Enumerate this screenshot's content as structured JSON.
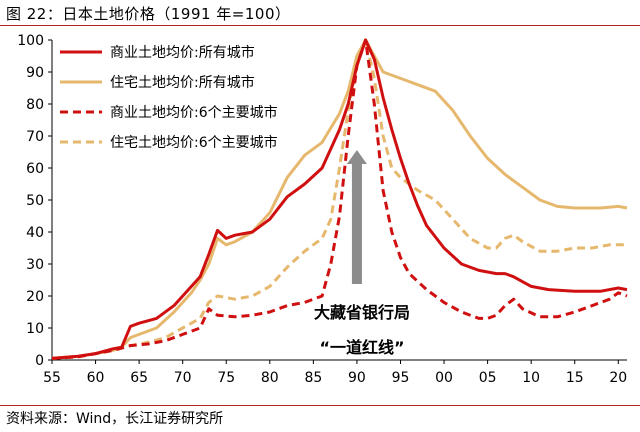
{
  "figure_title": "图 22：日本土地价格（1991 年=100）",
  "source_note": "资料来源：Wind，长江证券研究所",
  "colors": {
    "red": "#d01010",
    "gold": "#e6b86e",
    "arrow": "#8c8c8c",
    "rule": "#b22222"
  },
  "chart_data": {
    "type": "line",
    "title": "",
    "xlabel": "",
    "ylabel": "",
    "xlim": [
      1955,
      2021
    ],
    "ylim": [
      0,
      100
    ],
    "x_ticks": [
      1955,
      1960,
      1965,
      1970,
      1975,
      1980,
      1985,
      1990,
      1995,
      2000,
      2005,
      2010,
      2015,
      2020
    ],
    "x_tick_labels": [
      "55",
      "60",
      "65",
      "70",
      "75",
      "80",
      "85",
      "90",
      "95",
      "00",
      "05",
      "10",
      "15",
      "20"
    ],
    "y_ticks": [
      0,
      10,
      20,
      30,
      40,
      50,
      60,
      70,
      80,
      90,
      100
    ],
    "y_tick_labels": [
      "0",
      "10",
      "20",
      "30",
      "40",
      "50",
      "60",
      "70",
      "80",
      "90",
      "100"
    ],
    "grid": false,
    "legend_position": "top-left",
    "series": [
      {
        "name": "商业土地均价:所有城市",
        "style": "solid",
        "color": "red",
        "points": [
          [
            1955,
            0.5
          ],
          [
            1958,
            1.2
          ],
          [
            1960,
            2
          ],
          [
            1962,
            3.5
          ],
          [
            1963,
            4
          ],
          [
            1964,
            10.5
          ],
          [
            1965,
            11.5
          ],
          [
            1967,
            13
          ],
          [
            1969,
            17
          ],
          [
            1971,
            23
          ],
          [
            1972,
            26
          ],
          [
            1973,
            33
          ],
          [
            1974,
            40.5
          ],
          [
            1975,
            38
          ],
          [
            1976,
            39
          ],
          [
            1978,
            40
          ],
          [
            1980,
            44
          ],
          [
            1982,
            51
          ],
          [
            1984,
            55
          ],
          [
            1986,
            60
          ],
          [
            1988,
            72
          ],
          [
            1989,
            80
          ],
          [
            1990,
            92
          ],
          [
            1991,
            100
          ],
          [
            1992,
            94
          ],
          [
            1993,
            82
          ],
          [
            1994,
            72
          ],
          [
            1995,
            63
          ],
          [
            1996,
            55
          ],
          [
            1997,
            48
          ],
          [
            1998,
            42
          ],
          [
            2000,
            35
          ],
          [
            2002,
            30
          ],
          [
            2004,
            28
          ],
          [
            2006,
            27
          ],
          [
            2007,
            27
          ],
          [
            2008,
            26
          ],
          [
            2010,
            23
          ],
          [
            2012,
            22
          ],
          [
            2015,
            21.5
          ],
          [
            2018,
            21.5
          ],
          [
            2020,
            22.5
          ],
          [
            2021,
            22
          ]
        ]
      },
      {
        "name": "住宅土地均价:所有城市",
        "style": "solid",
        "color": "gold",
        "points": [
          [
            1955,
            0.5
          ],
          [
            1958,
            1.2
          ],
          [
            1960,
            2
          ],
          [
            1962,
            3
          ],
          [
            1963,
            4
          ],
          [
            1964,
            7
          ],
          [
            1965,
            8
          ],
          [
            1967,
            10
          ],
          [
            1969,
            15
          ],
          [
            1971,
            21
          ],
          [
            1972,
            25
          ],
          [
            1973,
            30
          ],
          [
            1974,
            38
          ],
          [
            1975,
            36
          ],
          [
            1976,
            37
          ],
          [
            1978,
            40
          ],
          [
            1980,
            46
          ],
          [
            1982,
            57
          ],
          [
            1984,
            64
          ],
          [
            1986,
            68
          ],
          [
            1988,
            77
          ],
          [
            1989,
            84
          ],
          [
            1990,
            95
          ],
          [
            1991,
            100
          ],
          [
            1992,
            95
          ],
          [
            1993,
            90
          ],
          [
            1995,
            88
          ],
          [
            1997,
            86
          ],
          [
            1999,
            84
          ],
          [
            2001,
            78
          ],
          [
            2003,
            70
          ],
          [
            2005,
            63
          ],
          [
            2007,
            58
          ],
          [
            2008,
            56
          ],
          [
            2009,
            54
          ],
          [
            2011,
            50
          ],
          [
            2013,
            48
          ],
          [
            2015,
            47.5
          ],
          [
            2018,
            47.5
          ],
          [
            2020,
            48
          ],
          [
            2021,
            47.5
          ]
        ]
      },
      {
        "name": "商业土地均价:6个主要城市",
        "style": "dashed",
        "color": "red",
        "points": [
          [
            1955,
            0.5
          ],
          [
            1958,
            1
          ],
          [
            1960,
            2
          ],
          [
            1962,
            3
          ],
          [
            1964,
            4.5
          ],
          [
            1966,
            5
          ],
          [
            1968,
            6
          ],
          [
            1970,
            8
          ],
          [
            1972,
            10
          ],
          [
            1973,
            16
          ],
          [
            1974,
            14
          ],
          [
            1976,
            13.5
          ],
          [
            1978,
            14
          ],
          [
            1980,
            15
          ],
          [
            1982,
            17
          ],
          [
            1984,
            18
          ],
          [
            1986,
            20
          ],
          [
            1987,
            30
          ],
          [
            1988,
            45
          ],
          [
            1989,
            70
          ],
          [
            1990,
            92
          ],
          [
            1991,
            100
          ],
          [
            1992,
            80
          ],
          [
            1993,
            53
          ],
          [
            1994,
            40
          ],
          [
            1995,
            32
          ],
          [
            1996,
            27
          ],
          [
            1998,
            22
          ],
          [
            2000,
            18
          ],
          [
            2002,
            15
          ],
          [
            2004,
            13
          ],
          [
            2005,
            13
          ],
          [
            2006,
            14
          ],
          [
            2007,
            17
          ],
          [
            2008,
            19
          ],
          [
            2009,
            16
          ],
          [
            2011,
            13.5
          ],
          [
            2013,
            13.5
          ],
          [
            2015,
            15
          ],
          [
            2017,
            17
          ],
          [
            2019,
            19
          ],
          [
            2020,
            21
          ],
          [
            2021,
            20
          ]
        ]
      },
      {
        "name": "住宅土地均价:6个主要城市",
        "style": "dashed",
        "color": "gold",
        "points": [
          [
            1955,
            0.5
          ],
          [
            1958,
            1
          ],
          [
            1960,
            2
          ],
          [
            1962,
            3
          ],
          [
            1964,
            4.5
          ],
          [
            1966,
            5.5
          ],
          [
            1968,
            7
          ],
          [
            1970,
            10
          ],
          [
            1972,
            13
          ],
          [
            1973,
            18
          ],
          [
            1974,
            20
          ],
          [
            1976,
            19
          ],
          [
            1978,
            20
          ],
          [
            1980,
            23
          ],
          [
            1982,
            29
          ],
          [
            1984,
            34
          ],
          [
            1986,
            38
          ],
          [
            1987,
            44
          ],
          [
            1988,
            60
          ],
          [
            1989,
            78
          ],
          [
            1990,
            92
          ],
          [
            1991,
            100
          ],
          [
            1992,
            88
          ],
          [
            1993,
            70
          ],
          [
            1994,
            60
          ],
          [
            1995,
            57
          ],
          [
            1997,
            53
          ],
          [
            1999,
            50
          ],
          [
            2001,
            44
          ],
          [
            2003,
            38
          ],
          [
            2005,
            35
          ],
          [
            2006,
            35
          ],
          [
            2007,
            38
          ],
          [
            2008,
            39
          ],
          [
            2009,
            37
          ],
          [
            2011,
            34
          ],
          [
            2013,
            34
          ],
          [
            2015,
            35
          ],
          [
            2017,
            35
          ],
          [
            2019,
            36
          ],
          [
            2021,
            36
          ]
        ]
      }
    ],
    "annotations": [
      "大藏省银行局",
      "“一道红线”"
    ]
  }
}
